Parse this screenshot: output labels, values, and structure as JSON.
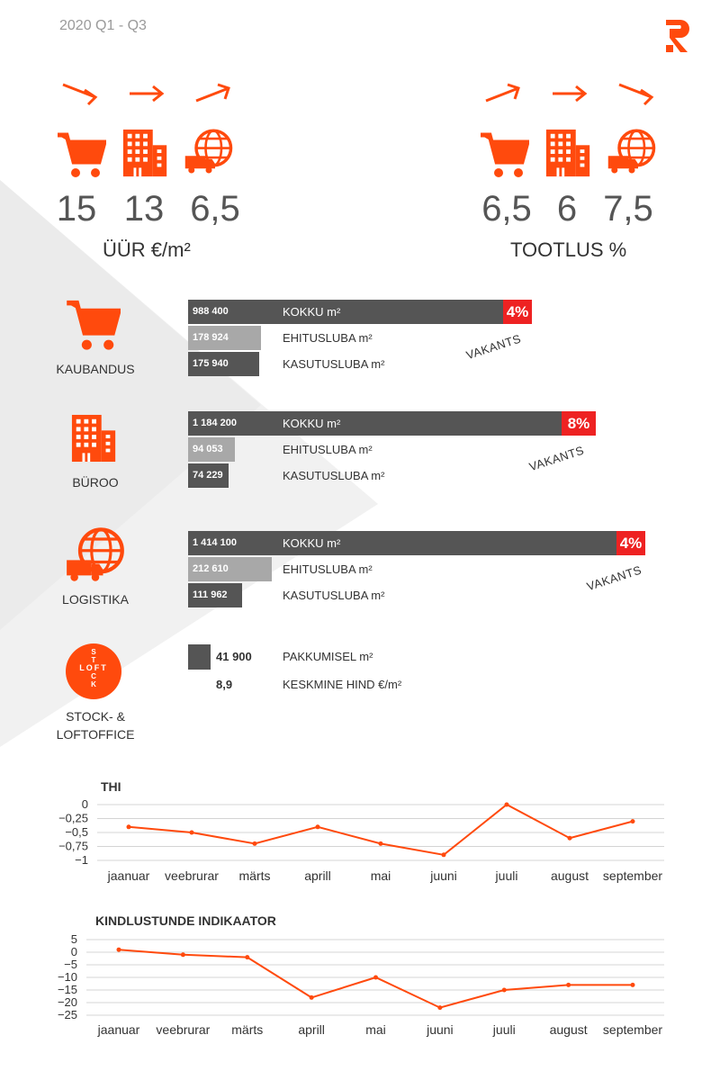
{
  "header": {
    "period": "2020 Q1 - Q3"
  },
  "colors": {
    "accent": "#ff4a0d",
    "dark_bar": "#555555",
    "light_bar": "#a8a8a8",
    "vacancy": "#ee2222"
  },
  "kpis": {
    "rent": {
      "label": "ÜÜR €/m²",
      "values": [
        "15",
        "13",
        "6,5"
      ],
      "icons": [
        "cart-icon",
        "office-icon",
        "logistics-icon"
      ]
    },
    "yield": {
      "label": "TOOTLUS %",
      "values": [
        "6,5",
        "6",
        "7,5"
      ],
      "icons": [
        "cart-icon",
        "office-icon",
        "logistics-icon"
      ]
    }
  },
  "segments": [
    {
      "name": "KAUBANDUS",
      "total": "988 400",
      "total_label": "KOKKU m²",
      "permit": "178 924",
      "permit_label": "EHITUSLUBA m²",
      "use": "175 940",
      "use_label": "KASUTUSLUBA m²",
      "vacancy": "4%",
      "vacancy_label": "VAKANTS"
    },
    {
      "name": "BÜROO",
      "total": "1 184 200",
      "total_label": "KOKKU m²",
      "permit": "94 053",
      "permit_label": "EHITUSLUBA m²",
      "use": "74 229",
      "use_label": "KASUTUSLUBA m²",
      "vacancy": "8%",
      "vacancy_label": "VAKANTS"
    },
    {
      "name": "LOGISTIKA",
      "total": "1 414 100",
      "total_label": "KOKKU m²",
      "permit": "212 610",
      "permit_label": "EHITUSLUBA m²",
      "use": "111 962",
      "use_label": "KASUTUSLUBA m²",
      "vacancy": "4%",
      "vacancy_label": "VAKANTS"
    }
  ],
  "stock": {
    "name_line1": "STOCK- &",
    "name_line2": "LOFTOFFICE",
    "badge_word1": "STOCK",
    "badge_word2": "LOFT",
    "pending": "41 900",
    "pending_label": "PAKKUMISEL m²",
    "avg_price": "8,9",
    "avg_price_label": "KESKMINE HIND €/m²"
  },
  "chart_data": [
    {
      "type": "line",
      "title": "THI",
      "categories": [
        "jaanuar",
        "veebrurar",
        "märts",
        "aprill",
        "mai",
        "juuni",
        "juuli",
        "august",
        "september"
      ],
      "values": [
        -0.4,
        -0.5,
        -0.7,
        -0.4,
        -0.7,
        -0.9,
        0,
        -0.6,
        -0.3
      ],
      "yticks": [
        "0",
        "−0,25",
        "−0,5",
        "−0,75",
        "−1"
      ],
      "ytick_values": [
        0,
        -0.25,
        -0.5,
        -0.75,
        -1
      ],
      "ylim": [
        -1,
        0
      ],
      "grid": true,
      "color": "#ff4a0d"
    },
    {
      "type": "line",
      "title": "KINDLUSTUNDE INDIKAATOR",
      "categories": [
        "jaanuar",
        "veebrurar",
        "märts",
        "aprill",
        "mai",
        "juuni",
        "juuli",
        "august",
        "september"
      ],
      "values": [
        1,
        -1,
        -2,
        -18,
        -10,
        -22,
        -15,
        -13,
        -13
      ],
      "yticks": [
        "5",
        "0",
        "−5",
        "−10",
        "−15",
        "−20",
        "−25"
      ],
      "ytick_values": [
        5,
        0,
        -5,
        -10,
        -15,
        -20,
        -25
      ],
      "ylim": [
        -25,
        5
      ],
      "grid": true,
      "color": "#ff4a0d"
    }
  ]
}
